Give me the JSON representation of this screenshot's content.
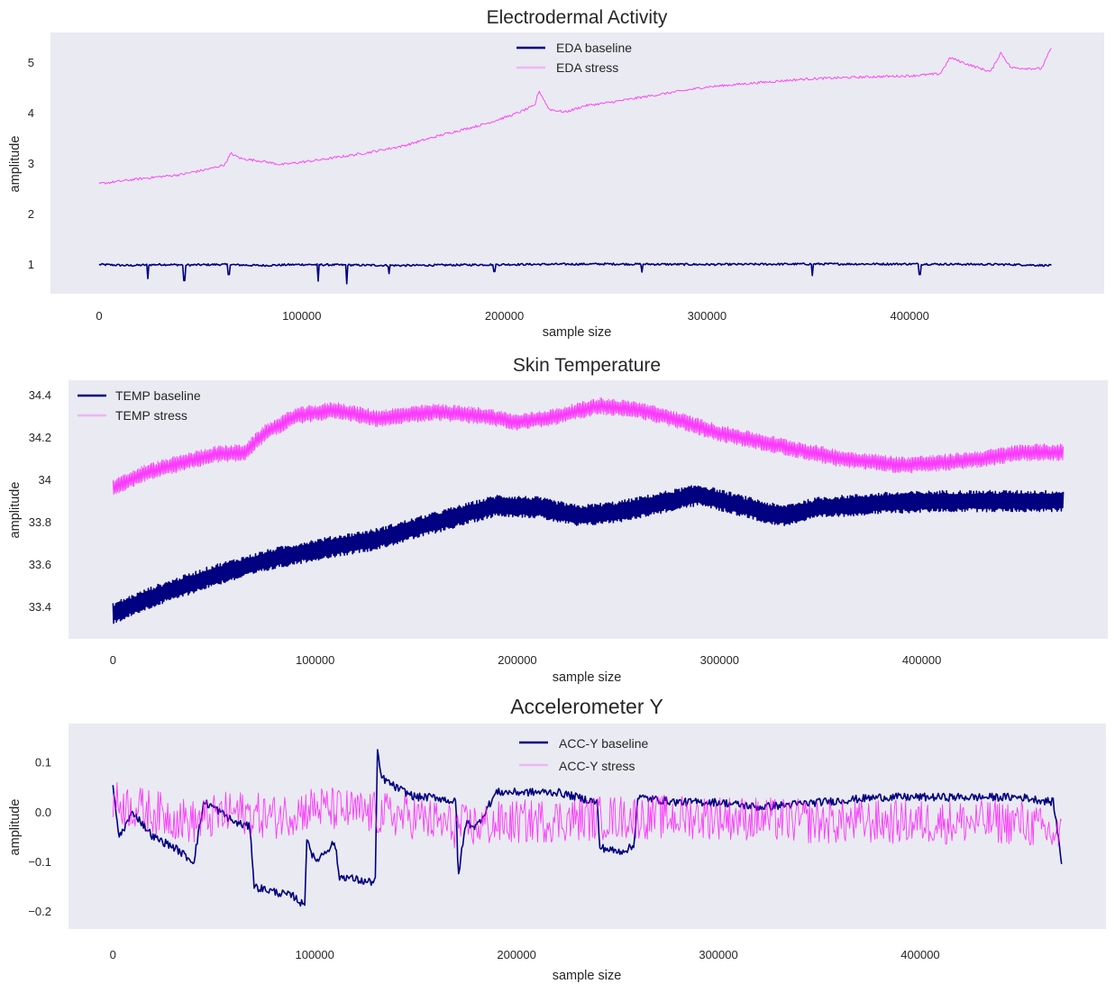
{
  "colors": {
    "baseline": "#000080",
    "stress": "#ff00ff",
    "plot_background": "#eaeaf2"
  },
  "chart_data": [
    {
      "type": "line",
      "title": "Electrodermal Activity",
      "xlabel": "sample size",
      "ylabel": "amplitude",
      "xlim": [
        -24000,
        496000
      ],
      "ylim": [
        0.42,
        5.6
      ],
      "xticks": [
        0,
        100000,
        200000,
        300000,
        400000
      ],
      "yticks": [
        1,
        2,
        3,
        4,
        5
      ],
      "grid": false,
      "legend": "top-center",
      "series": [
        {
          "name": "EDA baseline",
          "color": "#000080",
          "x": [
            0,
            15000,
            30000,
            45000,
            60000,
            80000,
            100000,
            120000,
            150000,
            200000,
            250000,
            300000,
            350000,
            400000,
            450000,
            470000
          ],
          "y": [
            1.0,
            0.98,
            1.0,
            0.99,
            1.0,
            0.98,
            1.0,
            0.99,
            0.98,
            1.0,
            1.01,
            1.0,
            1.01,
            1.01,
            1.0,
            0.98
          ],
          "noise": 0.02,
          "dips": [
            [
              24000,
              0.72
            ],
            [
              42000,
              0.68
            ],
            [
              64000,
              0.8
            ],
            [
              108000,
              0.67
            ],
            [
              122000,
              0.62
            ],
            [
              143000,
              0.82
            ],
            [
              195000,
              0.86
            ],
            [
              268000,
              0.85
            ],
            [
              352000,
              0.78
            ],
            [
              405000,
              0.8
            ]
          ]
        },
        {
          "name": "EDA stress",
          "color": "#ff00ff",
          "x": [
            0,
            20000,
            40000,
            55000,
            62000,
            65000,
            70000,
            80000,
            90000,
            110000,
            130000,
            150000,
            170000,
            190000,
            205000,
            215000,
            217000,
            222000,
            230000,
            240000,
            250000,
            270000,
            300000,
            330000,
            350000,
            380000,
            400000,
            415000,
            420000,
            430000,
            440000,
            445000,
            450000,
            465000,
            470000
          ],
          "y": [
            2.6,
            2.7,
            2.78,
            2.9,
            2.98,
            3.2,
            3.1,
            3.05,
            2.98,
            3.08,
            3.2,
            3.35,
            3.58,
            3.78,
            3.98,
            4.15,
            4.45,
            4.08,
            4.02,
            4.15,
            4.2,
            4.33,
            4.52,
            4.62,
            4.68,
            4.72,
            4.74,
            4.78,
            5.1,
            4.95,
            4.82,
            5.2,
            4.9,
            4.88,
            5.3
          ],
          "noise": 0.025
        }
      ]
    },
    {
      "type": "line",
      "title": "Skin Temperature",
      "xlabel": "sample size",
      "ylabel": "amplitude",
      "xlim": [
        -22000,
        492000
      ],
      "ylim": [
        33.25,
        34.47
      ],
      "xticks": [
        0,
        100000,
        200000,
        300000,
        400000
      ],
      "yticks": [
        33.4,
        33.6,
        33.8,
        34.0,
        34.2,
        34.4
      ],
      "grid": false,
      "legend": "top-left",
      "series": [
        {
          "name": "TEMP baseline",
          "color": "#000080",
          "x": [
            0,
            20000,
            50000,
            80000,
            100000,
            130000,
            160000,
            190000,
            210000,
            230000,
            250000,
            280000,
            290000,
            310000,
            330000,
            350000,
            380000,
            410000,
            440000,
            470000
          ],
          "y": [
            33.37,
            33.45,
            33.55,
            33.63,
            33.67,
            33.72,
            33.8,
            33.88,
            33.87,
            33.83,
            33.85,
            33.91,
            33.93,
            33.88,
            33.83,
            33.87,
            33.89,
            33.9,
            33.9,
            33.9
          ],
          "spread": 0.1
        },
        {
          "name": "TEMP stress",
          "color": "#ff00ff",
          "x": [
            0,
            15000,
            30000,
            50000,
            65000,
            75000,
            90000,
            110000,
            130000,
            160000,
            185000,
            200000,
            220000,
            240000,
            260000,
            280000,
            300000,
            330000,
            360000,
            390000,
            410000,
            430000,
            450000,
            470000
          ],
          "y": [
            33.96,
            34.03,
            34.07,
            34.12,
            34.13,
            34.22,
            34.3,
            34.33,
            34.29,
            34.32,
            34.3,
            34.27,
            34.3,
            34.35,
            34.33,
            34.28,
            34.22,
            34.16,
            34.1,
            34.07,
            34.08,
            34.1,
            34.13,
            34.13
          ],
          "spread": 0.08
        }
      ]
    },
    {
      "type": "line",
      "title": "Accelerometer Y",
      "xlabel": "sample size",
      "ylabel": "amplitude",
      "xlim": [
        -22000,
        492000
      ],
      "ylim": [
        -0.235,
        0.178
      ],
      "xticks": [
        0,
        100000,
        200000,
        300000,
        400000
      ],
      "yticks": [
        0.1,
        0.0,
        -0.1,
        -0.2
      ],
      "ytick_labels": [
        "0.1",
        "0.0",
        "−0.1",
        "−0.2"
      ],
      "grid": false,
      "legend": "top-center",
      "series": [
        {
          "name": "ACC-Y baseline",
          "color": "#000080",
          "x": [
            0,
            3000,
            10000,
            20000,
            30000,
            40000,
            45000,
            50000,
            60000,
            68000,
            70000,
            80000,
            90000,
            95000,
            96000,
            100000,
            110000,
            112000,
            115000,
            125000,
            130000,
            131000,
            133000,
            140000,
            150000,
            160000,
            170000,
            171000,
            175000,
            180000,
            190000,
            200000,
            210000,
            220000,
            230000,
            240000,
            241000,
            250000,
            258000,
            260000,
            280000,
            300000,
            320000,
            350000,
            380000,
            400000,
            420000,
            450000,
            466000,
            470000
          ],
          "y": [
            0.05,
            -0.05,
            0.0,
            -0.05,
            -0.07,
            -0.1,
            0.02,
            0.01,
            -0.02,
            -0.03,
            -0.15,
            -0.16,
            -0.17,
            -0.19,
            -0.05,
            -0.1,
            -0.06,
            -0.13,
            -0.13,
            -0.14,
            -0.14,
            0.12,
            0.07,
            0.05,
            0.03,
            0.03,
            0.02,
            -0.13,
            -0.02,
            -0.03,
            0.04,
            0.04,
            0.04,
            0.04,
            0.03,
            0.02,
            -0.07,
            -0.08,
            -0.07,
            0.03,
            0.02,
            0.02,
            0.01,
            0.02,
            0.03,
            0.03,
            0.03,
            0.03,
            0.02,
            -0.1
          ],
          "noise": 0.008
        },
        {
          "name": "ACC-Y stress",
          "color": "#ff00ff",
          "x": [
            0,
            20000,
            40000,
            60000,
            80000,
            100000,
            120000,
            150000,
            170000,
            200000,
            250000,
            300000,
            350000,
            400000,
            450000,
            470000
          ],
          "y": [
            0.02,
            0.0,
            -0.02,
            0.0,
            -0.01,
            0.01,
            0.0,
            -0.01,
            -0.03,
            -0.02,
            -0.01,
            -0.01,
            -0.02,
            -0.02,
            -0.02,
            -0.05
          ],
          "noise": 0.045
        }
      ]
    }
  ]
}
